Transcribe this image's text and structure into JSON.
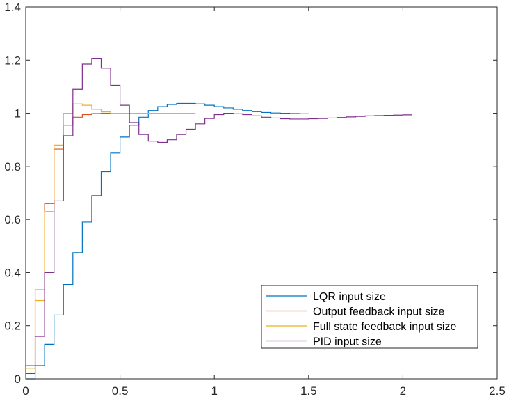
{
  "chart_data": {
    "type": "line",
    "step": true,
    "title": "",
    "xlabel": "",
    "ylabel": "",
    "xlim": [
      0,
      2.5
    ],
    "ylim": [
      0,
      1.4
    ],
    "xticks": [
      0,
      0.5,
      1,
      1.5,
      2,
      2.5
    ],
    "xtick_labels": [
      "0",
      "0.5",
      "1",
      "1.5",
      "2",
      "2.5"
    ],
    "yticks": [
      0,
      0.2,
      0.4,
      0.6,
      0.8,
      1,
      1.2,
      1.4
    ],
    "ytick_labels": [
      "0",
      "0.2",
      "0.4",
      "0.6",
      "0.8",
      "1",
      "1.2",
      "1.4"
    ],
    "grid": false,
    "legend_position": "lower-right",
    "series": [
      {
        "name": "LQR input size",
        "color": "#0072BD",
        "dt": 0.05,
        "values": [
          0,
          0.05,
          0.13,
          0.24,
          0.355,
          0.475,
          0.59,
          0.69,
          0.78,
          0.85,
          0.91,
          0.955,
          0.985,
          1.01,
          1.025,
          1.033,
          1.037,
          1.037,
          1.035,
          1.03,
          1.025,
          1.02,
          1.015,
          1.01,
          1.006,
          1.003,
          1.001,
          1.0,
          0.999,
          0.998
        ]
      },
      {
        "name": "Output feedback input size",
        "color": "#D95319",
        "dt": 0.05,
        "values": [
          0.05,
          0.335,
          0.66,
          0.865,
          0.955,
          0.985,
          0.995,
          0.999,
          1.0,
          1.0,
          1.0,
          1.0,
          1.0,
          1.0,
          1.0,
          1.0,
          1.0,
          1.0
        ]
      },
      {
        "name": "Full state feedback input size",
        "color": "#EDB120",
        "dt": 0.05,
        "values": [
          0.04,
          0.295,
          0.63,
          0.88,
          1.0,
          1.035,
          1.03,
          1.015,
          1.005,
          1.0,
          1.0,
          1.0,
          1.0,
          1.0,
          1.0,
          1.0,
          1.0,
          1.0
        ]
      },
      {
        "name": "PID input size",
        "color": "#7E2F8E",
        "dt": 0.05,
        "values": [
          0.02,
          0.16,
          0.4,
          0.67,
          0.915,
          1.09,
          1.185,
          1.205,
          1.17,
          1.105,
          1.03,
          0.965,
          0.92,
          0.895,
          0.89,
          0.9,
          0.92,
          0.94,
          0.96,
          0.98,
          0.995,
          1.0,
          0.998,
          0.995,
          0.99,
          0.985,
          0.982,
          0.979,
          0.978,
          0.978,
          0.979,
          0.98,
          0.982,
          0.984,
          0.986,
          0.988,
          0.99,
          0.991,
          0.992,
          0.993,
          0.994
        ]
      }
    ]
  }
}
